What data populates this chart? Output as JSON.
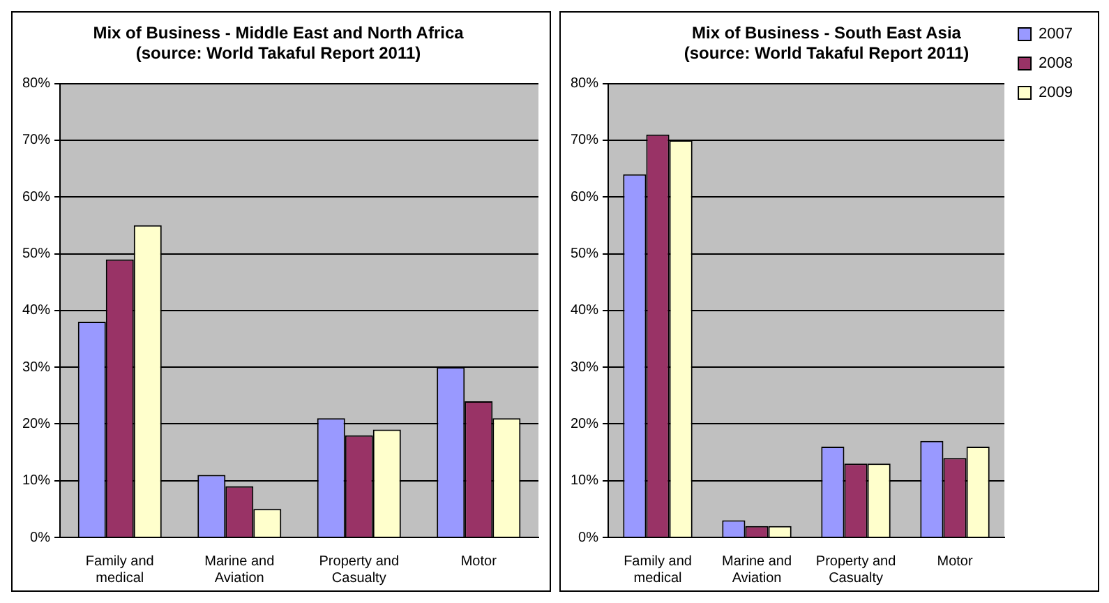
{
  "chart_data": [
    {
      "type": "bar",
      "title": [
        "Mix of Business - Middle East and North Africa",
        "(source: World Takaful Report 2011)"
      ],
      "categories": [
        "Family and medical",
        "Marine and Aviation",
        "Property and Casualty",
        "Motor"
      ],
      "series": [
        {
          "color": "#9999ff",
          "values": [
            0.38,
            0.11,
            0.21,
            0.3
          ]
        },
        {
          "color": "#993366",
          "values": [
            0.49,
            0.09,
            0.18,
            0.24
          ]
        },
        {
          "color": "#ffffcc",
          "values": [
            0.55,
            0.05,
            0.19,
            0.21
          ]
        }
      ],
      "ylim": [
        0,
        0.8
      ],
      "yticks": [
        {
          "value": 0,
          "label": "0%"
        },
        {
          "value": 0.1,
          "label": "10%"
        },
        {
          "value": 0.2,
          "label": "20%"
        },
        {
          "value": 0.3,
          "label": "30%"
        },
        {
          "value": 0.4,
          "label": "40%"
        },
        {
          "value": 0.5,
          "label": "50%"
        },
        {
          "value": 0.6,
          "label": "60%"
        },
        {
          "value": 0.7,
          "label": "70%"
        },
        {
          "value": 0.8,
          "label": "80%"
        }
      ],
      "grid": "y"
    },
    {
      "type": "bar",
      "title": [
        "Mix of Business - South East Asia",
        "(source: World Takaful Report 2011)"
      ],
      "categories": [
        "Family and medical",
        "Marine and Aviation",
        "Property and Casualty",
        "Motor"
      ],
      "series": [
        {
          "name": "2007",
          "color": "#9999ff",
          "values": [
            0.64,
            0.03,
            0.16,
            0.17
          ]
        },
        {
          "name": "2008",
          "color": "#993366",
          "values": [
            0.71,
            0.02,
            0.13,
            0.14
          ]
        },
        {
          "name": "2009",
          "color": "#ffffcc",
          "values": [
            0.7,
            0.02,
            0.13,
            0.16
          ]
        }
      ],
      "ylim": [
        0,
        0.8
      ],
      "yticks": [
        {
          "value": 0,
          "label": "0%"
        },
        {
          "value": 0.1,
          "label": "10%"
        },
        {
          "value": 0.2,
          "label": "20%"
        },
        {
          "value": 0.3,
          "label": "30%"
        },
        {
          "value": 0.4,
          "label": "40%"
        },
        {
          "value": 0.5,
          "label": "50%"
        },
        {
          "value": 0.6,
          "label": "60%"
        },
        {
          "value": 0.7,
          "label": "70%"
        },
        {
          "value": 0.8,
          "label": "80%"
        }
      ],
      "grid": "y",
      "legend": "top right"
    }
  ]
}
